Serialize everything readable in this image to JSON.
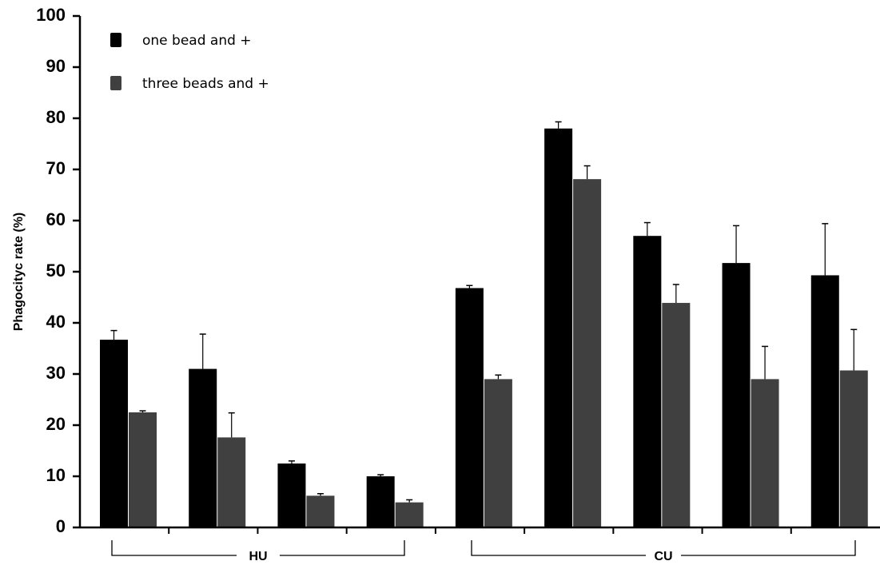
{
  "chart_data": {
    "type": "bar",
    "title": "",
    "xlabel": "",
    "ylabel": "Phagocityc rate (%)",
    "ylim": [
      0,
      100
    ],
    "yticks": [
      0,
      10,
      20,
      30,
      40,
      50,
      60,
      70,
      80,
      90,
      100
    ],
    "grid": false,
    "legend_position": "top-left",
    "categories": [
      "",
      "",
      "",
      "",
      "",
      "",
      "",
      "",
      ""
    ],
    "groups": [
      {
        "label": "HU",
        "from": 0,
        "to": 3
      },
      {
        "label": "CU",
        "from": 4,
        "to": 8
      }
    ],
    "series": [
      {
        "name": "one bead and +",
        "color": "#000000",
        "values": [
          36.7,
          31.0,
          12.5,
          10.0,
          46.8,
          78.0,
          57.0,
          51.7,
          49.3
        ],
        "errors": [
          1.8,
          6.8,
          0.5,
          0.3,
          0.5,
          1.3,
          2.6,
          7.3,
          10.1
        ]
      },
      {
        "name": "three beads and +",
        "color": "#404040",
        "values": [
          22.5,
          17.6,
          6.2,
          4.9,
          29.0,
          68.1,
          43.9,
          29.0,
          30.7
        ],
        "errors": [
          0.3,
          4.8,
          0.4,
          0.5,
          0.8,
          2.6,
          3.6,
          6.4,
          8.0
        ]
      }
    ]
  }
}
